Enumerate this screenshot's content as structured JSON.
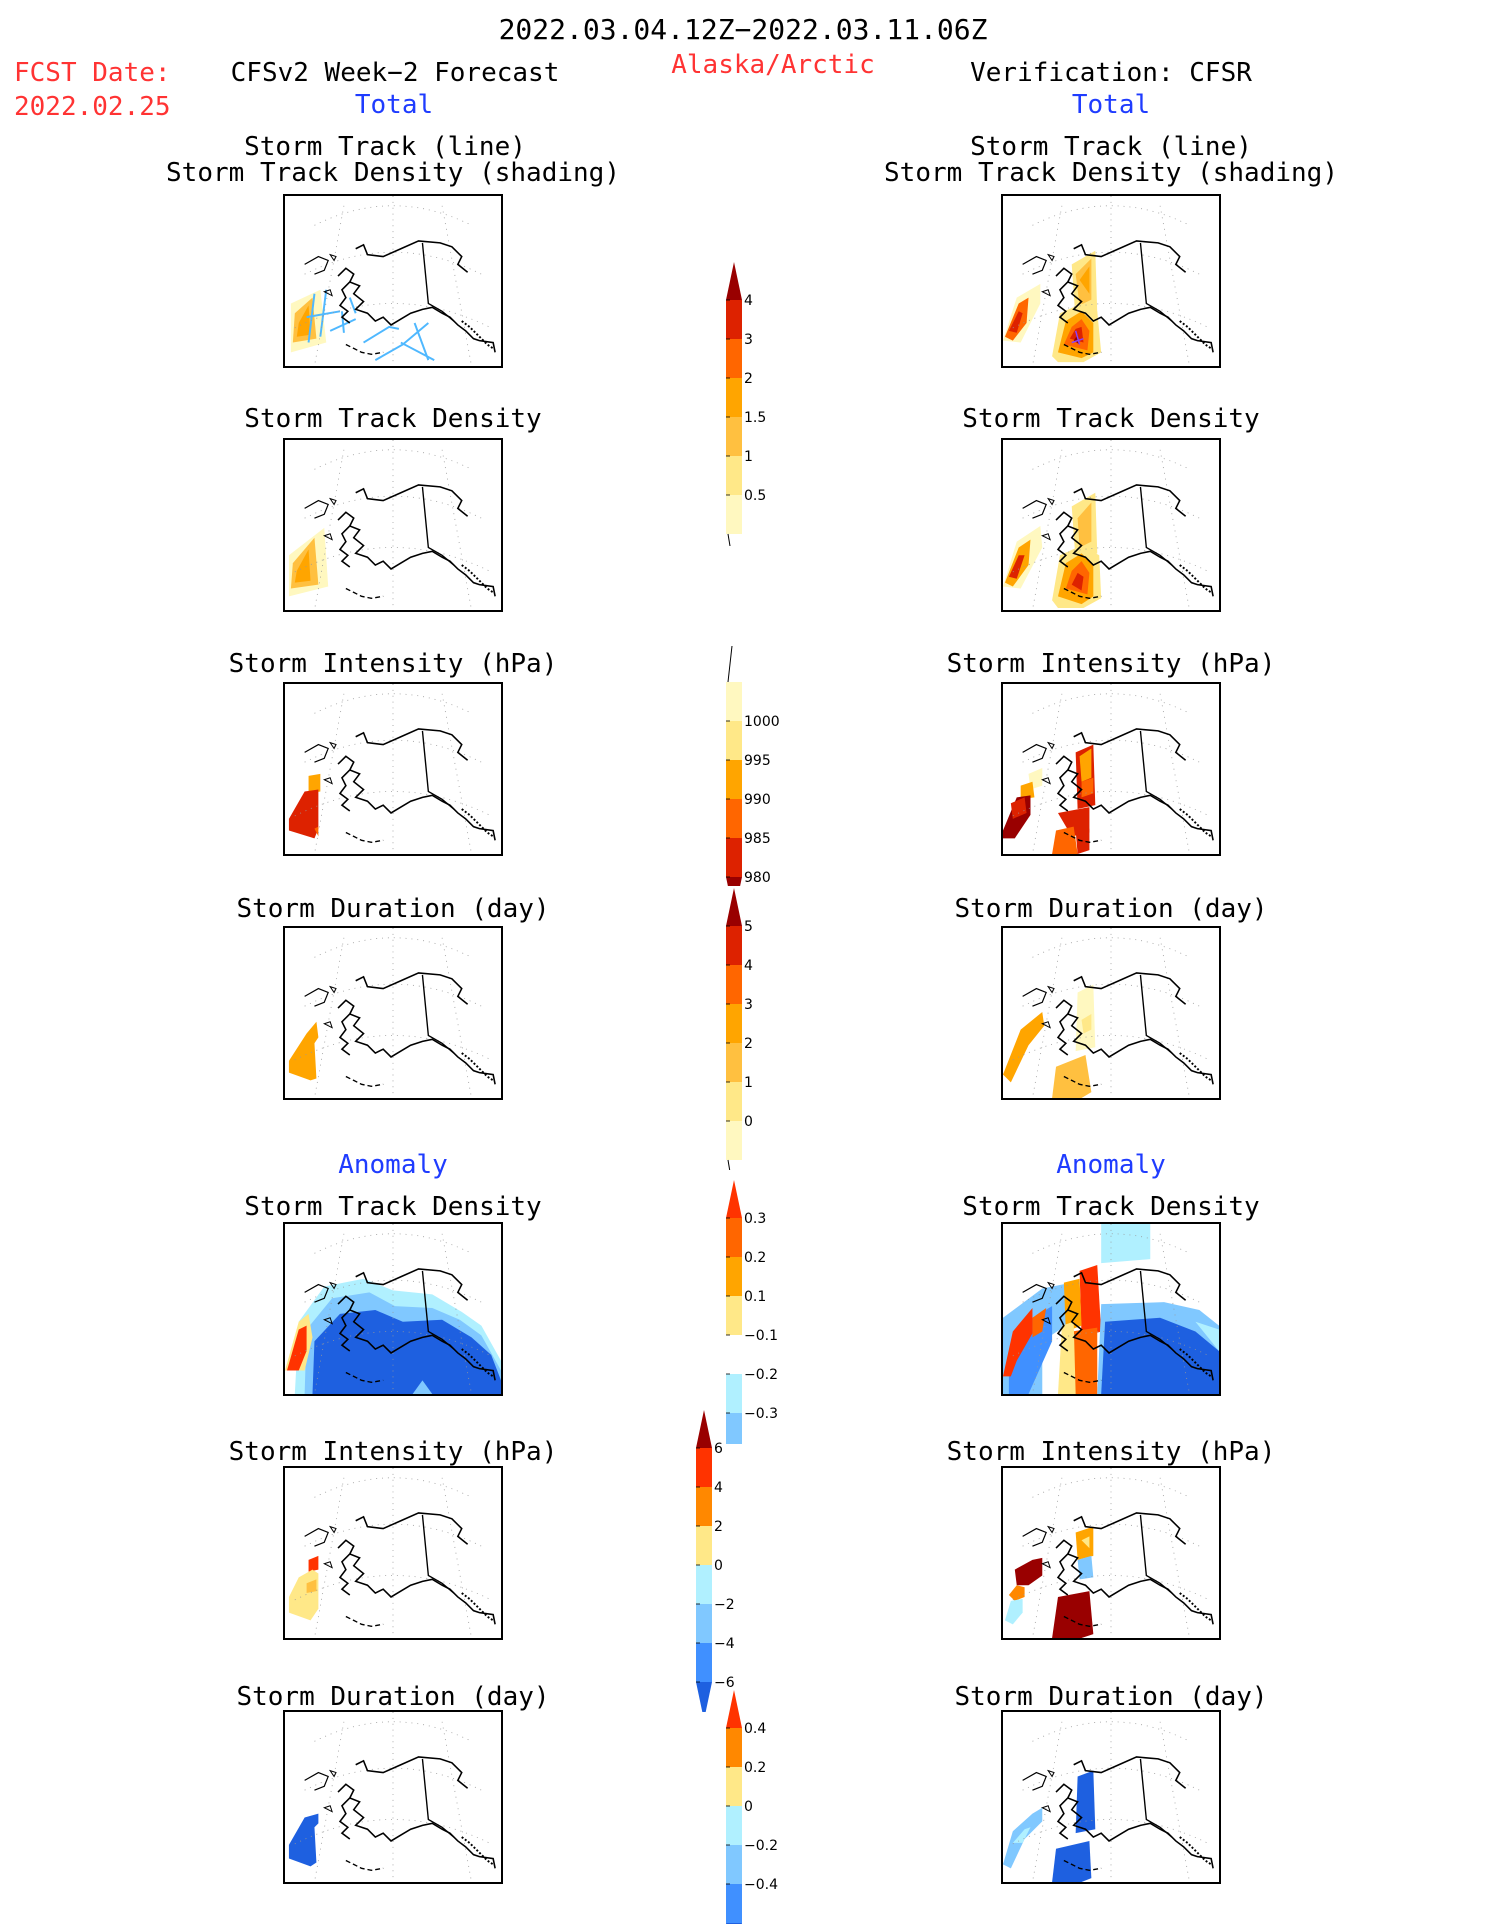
{
  "header": {
    "date_range": "2022.03.04.12Z−2022.03.11.06Z",
    "region": "Alaska/Arctic",
    "fcst_label": "FCST Date:",
    "fcst_date": "2022.02.25",
    "left_title": "CFSv2 Week−2 Forecast",
    "right_title": "Verification: CFSR",
    "total_left": "Total",
    "total_right": "Total",
    "anomaly_left": "Anomaly",
    "anomaly_right": "Anomaly"
  },
  "rows": [
    {
      "title_line1": "Storm Track (line)",
      "title_line2": "Storm Track Density (shading)"
    },
    {
      "title_line1": "Storm Track Density"
    },
    {
      "title_line1": "Storm Intensity (hPa)"
    },
    {
      "title_line1": "Storm Duration (day)"
    },
    {
      "title_line1": "Storm Track Density"
    },
    {
      "title_line1": "Storm Intensity (hPa)"
    },
    {
      "title_line1": "Storm Duration (day)"
    }
  ],
  "colorbars": [
    {
      "name": "density-total",
      "labels": [
        "4",
        "3",
        "2",
        "1.5",
        "1",
        "0.5"
      ],
      "colors": [
        "#990000",
        "#dd2200",
        "#ff6600",
        "#ffa500",
        "#ffc040",
        "#ffe888",
        "#fff8c0"
      ]
    },
    {
      "name": "intensity-total",
      "labels": [
        "1000",
        "995",
        "990",
        "985",
        "980"
      ],
      "colors": [
        "#fff8c0",
        "#ffe888",
        "#ffa500",
        "#ff6600",
        "#dd2200",
        "#990000"
      ]
    },
    {
      "name": "duration-total",
      "labels": [
        "5",
        "4",
        "3",
        "2",
        "1",
        "0"
      ],
      "colors": [
        "#990000",
        "#dd2200",
        "#ff6600",
        "#ffa500",
        "#ffc040",
        "#ffe888",
        "#fff8c0"
      ]
    },
    {
      "name": "density-anomaly",
      "labels": [
        "0.3",
        "0.2",
        "0.1",
        "−0.1",
        "−0.2",
        "−0.3"
      ],
      "colors": [
        "#ff3300",
        "#ff6600",
        "#ffa500",
        "#ffe888",
        "#ffffff",
        "#b0f0ff",
        "#80c8ff",
        "#4090ff",
        "#1e60e0"
      ]
    },
    {
      "name": "intensity-anomaly",
      "labels": [
        "6",
        "4",
        "2",
        "0",
        "−2",
        "−4",
        "−6"
      ],
      "colors": [
        "#990000",
        "#ff3300",
        "#ff8800",
        "#ffe888",
        "#b0f0ff",
        "#80c8ff",
        "#4090ff",
        "#1e60e0"
      ]
    },
    {
      "name": "duration-anomaly",
      "labels": [
        "0.4",
        "0.2",
        "0",
        "−0.2",
        "−0.4"
      ],
      "colors": [
        "#ff3300",
        "#ff8800",
        "#ffe888",
        "#b0f0ff",
        "#80c8ff",
        "#4090ff",
        "#1e60e0"
      ]
    }
  ],
  "colors": {
    "title_red": "#ff3333",
    "title_blue": "#1f3cff"
  }
}
